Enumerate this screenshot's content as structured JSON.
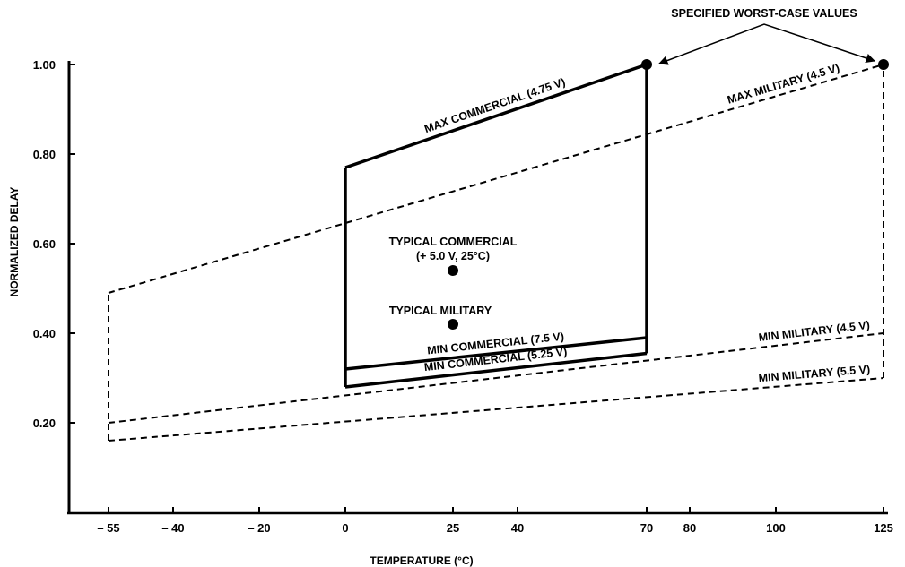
{
  "chart_data": {
    "type": "line",
    "title": "",
    "xlabel": "TEMPERATURE (°C)",
    "ylabel": "NORMALIZED DELAY",
    "xlim": [
      -55,
      125
    ],
    "ylim": [
      0.0,
      1.0
    ],
    "x_ticks": [
      -55,
      -40,
      -20,
      0,
      25,
      40,
      70,
      80,
      100,
      125
    ],
    "x_tick_labels": [
      "– 55",
      "– 40",
      "– 20",
      "0",
      "25",
      "40",
      "70",
      "80",
      "100",
      "125"
    ],
    "y_ticks": [
      0.2,
      0.4,
      0.6,
      0.8,
      1.0
    ],
    "y_tick_labels": [
      "0.20",
      "0.40",
      "0.60",
      "0.80",
      "1.00"
    ],
    "grid": false,
    "series": [
      {
        "name": "MAX COMMERCIAL (4.75 V)",
        "style": "solid",
        "x": [
          0,
          70
        ],
        "values": [
          0.77,
          1.0
        ]
      },
      {
        "name": "MIN COMMERCIAL (7.5 V)",
        "style": "solid",
        "x": [
          0,
          70
        ],
        "values": [
          0.32,
          0.39
        ]
      },
      {
        "name": "MIN COMMERCIAL (5.25 V)",
        "style": "solid",
        "x": [
          0,
          70
        ],
        "values": [
          0.28,
          0.355
        ]
      },
      {
        "name": "MAX MILITARY (4.5 V)",
        "style": "dashed",
        "x": [
          -55,
          125
        ],
        "values": [
          0.49,
          1.0
        ]
      },
      {
        "name": "MIN MILITARY (4.5 V)",
        "style": "dashed",
        "x": [
          -55,
          125
        ],
        "values": [
          0.2,
          0.4
        ]
      },
      {
        "name": "MIN MILITARY (5.5 V)",
        "style": "dashed",
        "x": [
          -55,
          125
        ],
        "values": [
          0.16,
          0.3
        ]
      }
    ],
    "boundaries": [
      {
        "style": "solid",
        "x": 0,
        "y_range": [
          0.28,
          0.77
        ]
      },
      {
        "style": "solid",
        "x": 70,
        "y_range": [
          0.355,
          1.0
        ]
      },
      {
        "style": "dashed",
        "x": -55,
        "y_range": [
          0.16,
          0.49
        ]
      },
      {
        "style": "dashed",
        "x": 125,
        "y_range": [
          0.3,
          1.0
        ]
      }
    ],
    "points": [
      {
        "label": "TYPICAL COMMERCIAL",
        "sublabel": "(+ 5.0 V, 25°C)",
        "x": 25,
        "y": 0.54
      },
      {
        "label": "TYPICAL MILITARY",
        "sublabel": "",
        "x": 25,
        "y": 0.42
      },
      {
        "label": "",
        "sublabel": "",
        "x": 70,
        "y": 1.0
      },
      {
        "label": "",
        "sublabel": "",
        "x": 125,
        "y": 1.0
      }
    ],
    "annotation": "SPECIFIED WORST-CASE VALUES"
  }
}
